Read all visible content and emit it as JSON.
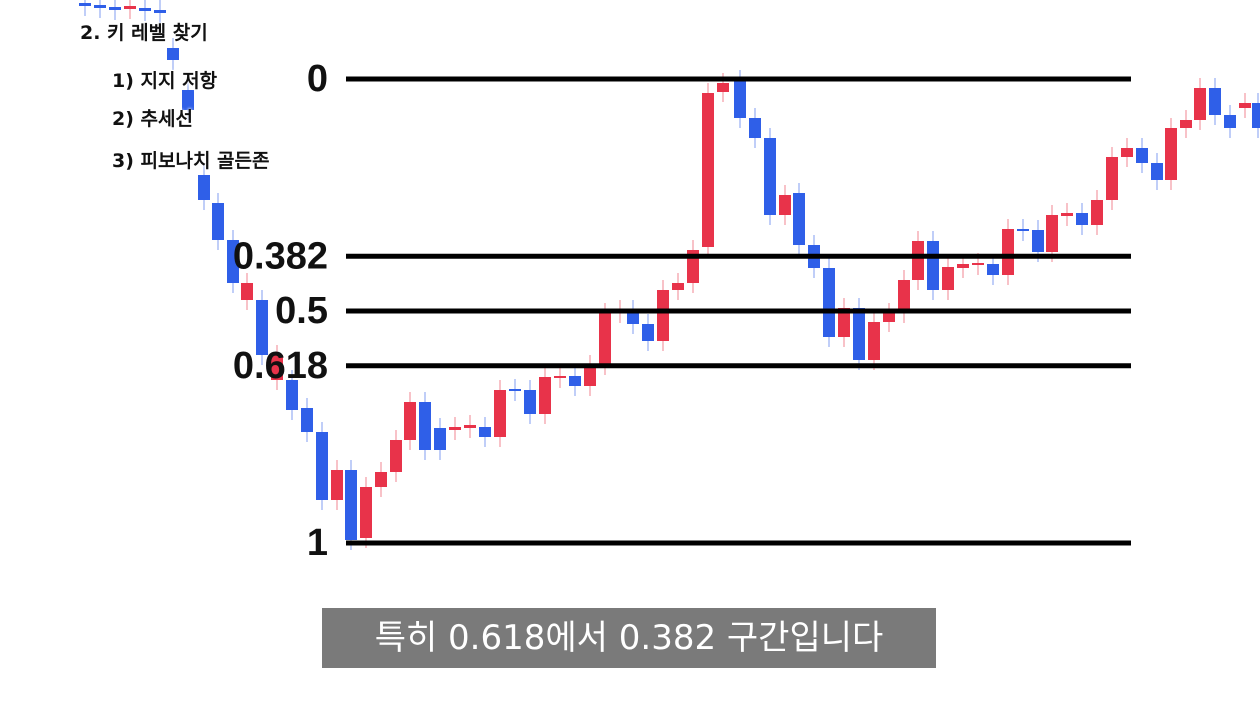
{
  "outline": {
    "title": "2. 키 레벨 찾기",
    "items": [
      "1) 지지 저항",
      "2) 추세선",
      "3) 피보나치 골든존"
    ]
  },
  "fibonacci": {
    "levels": [
      0,
      0.382,
      0.5,
      0.618,
      1
    ]
  },
  "caption": "특히 0.618에서 0.382 구간입니다"
}
